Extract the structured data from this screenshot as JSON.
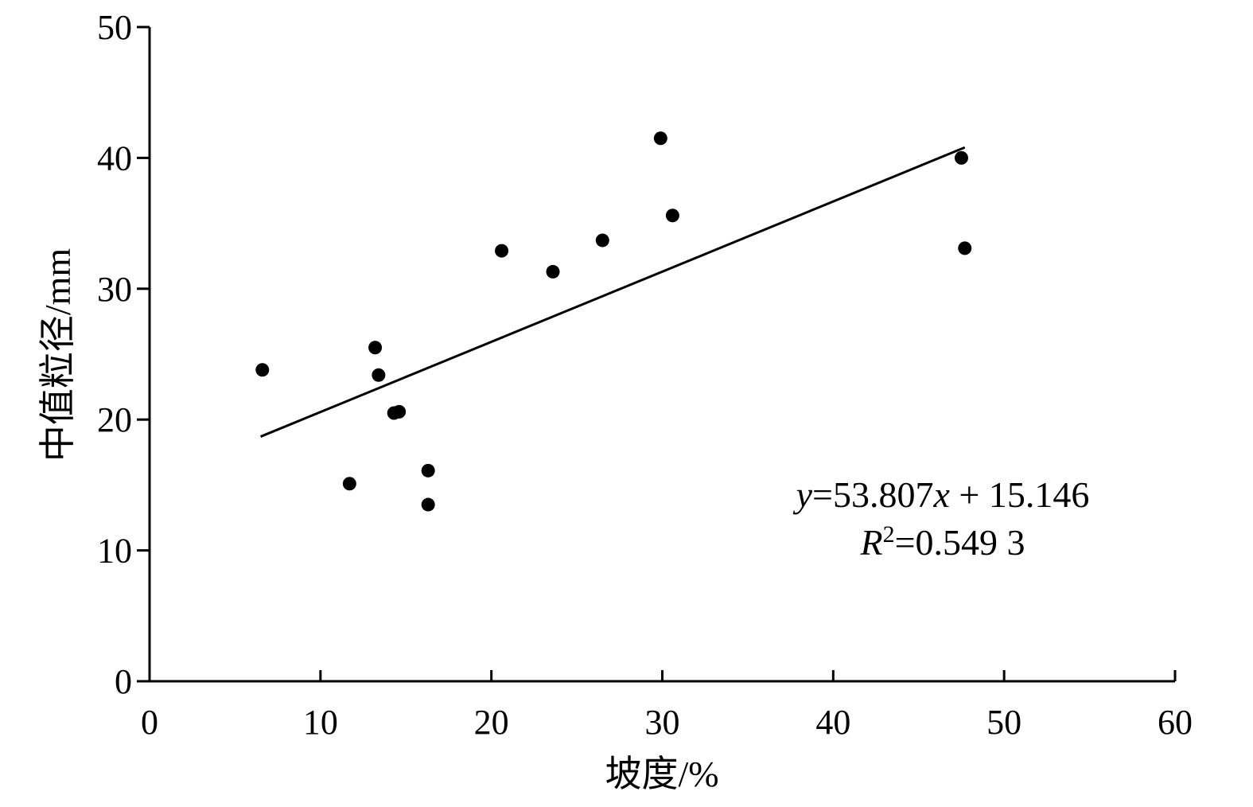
{
  "chart_data": {
    "type": "scatter",
    "title": "",
    "xlabel": "坡度/%",
    "ylabel": "中值粒径/mm",
    "xlim": [
      0,
      60
    ],
    "ylim": [
      0,
      50
    ],
    "xticks": [
      0,
      10,
      20,
      30,
      40,
      50,
      60
    ],
    "yticks": [
      0,
      10,
      20,
      30,
      40,
      50
    ],
    "grid": false,
    "legend": "none",
    "series": [
      {
        "points": [
          {
            "x": 6.6,
            "y": 23.8
          },
          {
            "x": 11.7,
            "y": 15.1
          },
          {
            "x": 13.2,
            "y": 25.5
          },
          {
            "x": 13.4,
            "y": 23.4
          },
          {
            "x": 14.3,
            "y": 20.5
          },
          {
            "x": 14.6,
            "y": 20.6
          },
          {
            "x": 16.3,
            "y": 16.1
          },
          {
            "x": 16.3,
            "y": 13.5
          },
          {
            "x": 20.6,
            "y": 32.9
          },
          {
            "x": 23.6,
            "y": 31.3
          },
          {
            "x": 26.5,
            "y": 33.7
          },
          {
            "x": 29.9,
            "y": 41.5
          },
          {
            "x": 30.6,
            "y": 35.6
          },
          {
            "x": 47.5,
            "y": 40.0
          },
          {
            "x": 47.7,
            "y": 33.1
          }
        ]
      }
    ],
    "trendline": {
      "x_start": 6.5,
      "y_start": 18.7,
      "x_end": 47.7,
      "y_end": 40.8
    },
    "annotation": {
      "equation": {
        "y_var": "y",
        "mid": "=53.807",
        "x_var": "x",
        "tail": " + 15.146"
      },
      "r_squared": {
        "r_var": "R",
        "sup": "2",
        "tail": "=0.549 3"
      }
    },
    "colors": {
      "marker": "#000000",
      "line": "#000000",
      "axis": "#000000"
    }
  }
}
